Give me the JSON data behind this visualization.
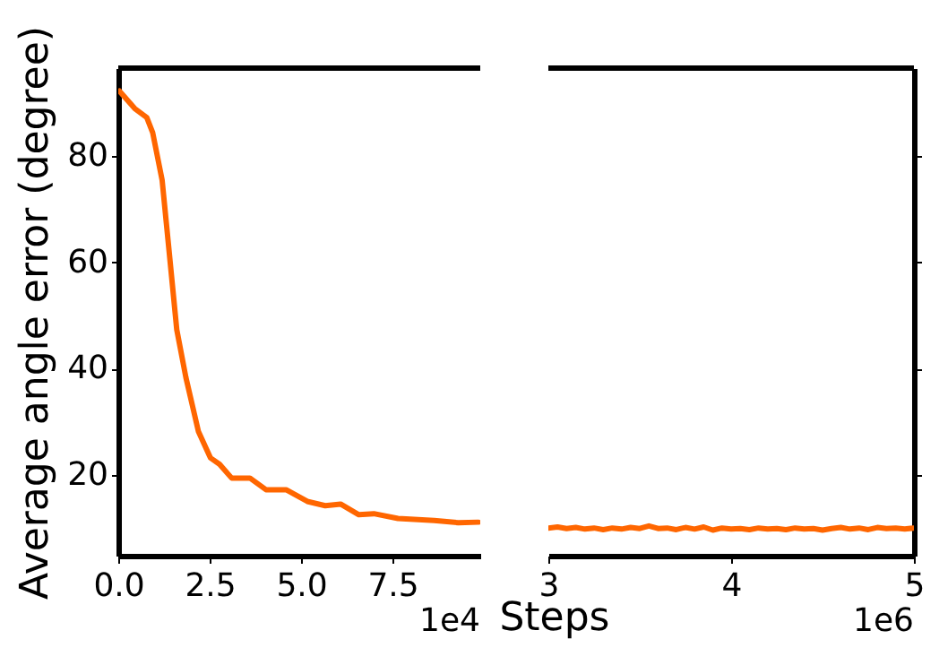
{
  "chart_data": [
    {
      "type": "line",
      "ylabel": "Average angle error (degree)",
      "xlabel": "Steps",
      "annotations": [
        "1e4"
      ],
      "color": "#ff6600",
      "line_style": "solid",
      "x": [
        0.03,
        0.45,
        0.78,
        0.94,
        1.2,
        1.36,
        1.6,
        1.85,
        2.19,
        2.52,
        2.77,
        3.1,
        3.6,
        4.04,
        4.59,
        5.17,
        5.66,
        6.08,
        6.58,
        6.99,
        7.65,
        8.64,
        9.3,
        9.85
      ],
      "values": [
        92.2,
        88.9,
        87.2,
        84.4,
        75.4,
        64.2,
        47.3,
        38.3,
        28.2,
        23.2,
        22.0,
        19.4,
        19.4,
        17.2,
        17.2,
        15.0,
        14.2,
        14.5,
        12.5,
        12.7,
        11.8,
        11.4,
        11.0,
        11.1
      ],
      "xlim": [
        0,
        9.9
      ],
      "xticks": [
        {
          "value": 0,
          "label": "0.0"
        },
        2.5,
        {
          "value": 5,
          "label": "5.0"
        },
        7.5
      ],
      "ylim": [
        4.8,
        96.5
      ],
      "yticks": [
        20,
        40,
        60,
        80
      ]
    },
    {
      "type": "line",
      "annotations": [
        "1e6"
      ],
      "color": "#ff6600",
      "line_style": "solid",
      "tick_labels": "x",
      "x": [
        3.0,
        3.05,
        3.1,
        3.15,
        3.2,
        3.25,
        3.3,
        3.35,
        3.4,
        3.45,
        3.5,
        3.55,
        3.6,
        3.65,
        3.7,
        3.75,
        3.8,
        3.85,
        3.9,
        3.95,
        4.0,
        4.05,
        4.1,
        4.15,
        4.2,
        4.25,
        4.3,
        4.35,
        4.4,
        4.45,
        4.5,
        4.55,
        4.6,
        4.65,
        4.7,
        4.75,
        4.8,
        4.85,
        4.9,
        4.95,
        5.0
      ],
      "values": [
        10.0,
        10.2,
        9.9,
        10.1,
        9.8,
        10.0,
        9.7,
        10.0,
        9.8,
        10.1,
        9.9,
        10.4,
        9.9,
        10.0,
        9.7,
        10.1,
        9.8,
        10.2,
        9.6,
        10.0,
        9.8,
        9.9,
        9.7,
        10.0,
        9.8,
        9.9,
        9.7,
        10.0,
        9.8,
        9.9,
        9.6,
        9.9,
        10.1,
        9.8,
        10.0,
        9.7,
        10.1,
        9.9,
        10.0,
        9.8,
        10.0
      ],
      "xlim": [
        3,
        5
      ],
      "xticks": [
        3,
        4,
        5
      ],
      "ylim": [
        4.8,
        96.5
      ],
      "yticks": [
        20,
        40,
        60,
        80
      ]
    }
  ]
}
